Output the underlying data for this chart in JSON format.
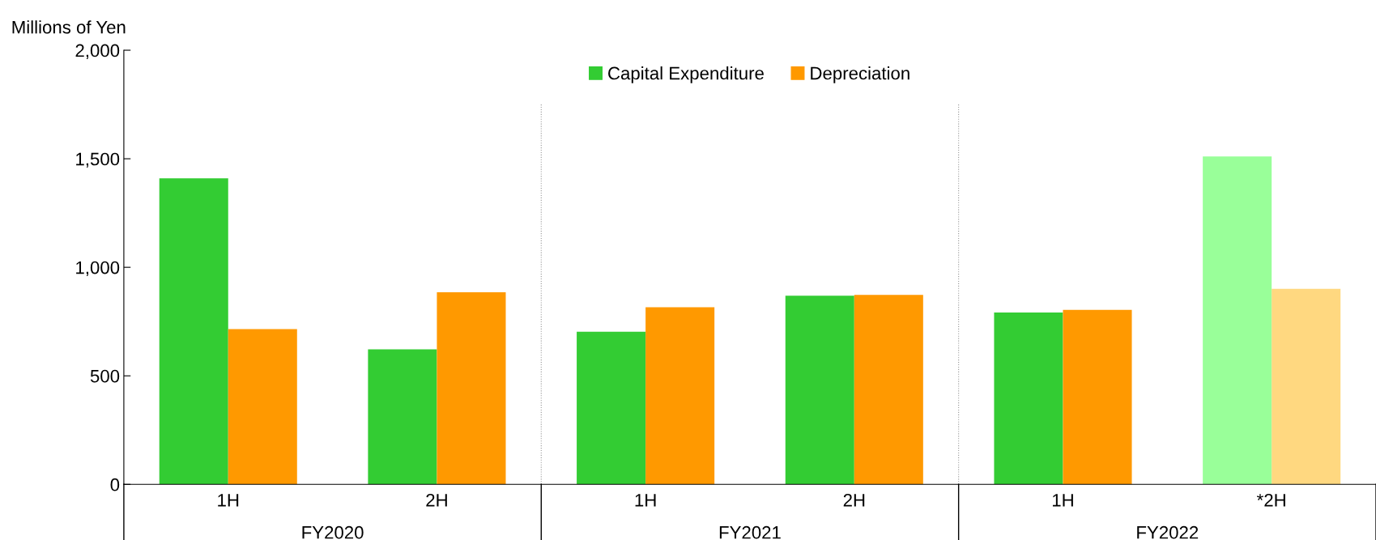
{
  "chart_data": {
    "type": "bar",
    "ylabel": "Millions of Yen",
    "categories": [
      "1H",
      "2H",
      "1H",
      "2H",
      "1H",
      "*2H"
    ],
    "series": [
      {
        "name": "Capital Expenditure",
        "color": "#33cc33",
        "colors": [
          "#33cc33",
          "#33cc33",
          "#33cc33",
          "#33cc33",
          "#33cc33",
          "#99ff99"
        ],
        "values": [
          1410,
          622,
          703,
          869,
          792,
          1511
        ]
      },
      {
        "name": "Depreciation",
        "color": "#ff9900",
        "colors": [
          "#ff9900",
          "#ff9900",
          "#ff9900",
          "#ff9900",
          "#ff9900",
          "#ffd880"
        ],
        "values": [
          715,
          885,
          816,
          873,
          804,
          901
        ]
      }
    ],
    "ylim": [
      0,
      2000
    ],
    "yticks": [
      0,
      {
        "value": 500,
        "label": "500"
      },
      {
        "value": 1000,
        "label": "1,000"
      },
      {
        "value": 1500,
        "label": "1,500"
      },
      {
        "value": 2000,
        "label": "2,000"
      }
    ],
    "annotations": [
      "FY2020",
      "FY2021",
      "FY2022"
    ],
    "legend": "top",
    "grid": false
  }
}
